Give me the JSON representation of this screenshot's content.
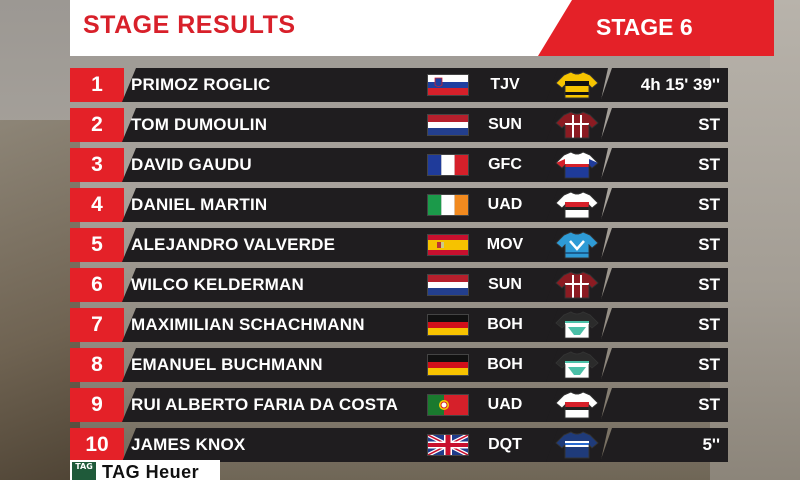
{
  "header": {
    "title": "STAGE RESULTS",
    "stage": "STAGE 6"
  },
  "colors": {
    "accent": "#e42128",
    "bar": "#1f1d1f"
  },
  "sponsor": {
    "badge": "TAG",
    "text": "TAG Heuer"
  },
  "rows": [
    {
      "pos": "1",
      "name": "PRIMOZ ROGLIC",
      "flag": "slovenia",
      "team": "TJV",
      "jersey": "yellow-black",
      "time": "4h 15' 39''"
    },
    {
      "pos": "2",
      "name": "TOM DUMOULIN",
      "flag": "netherlands",
      "team": "SUN",
      "jersey": "darkred-white",
      "time": "ST"
    },
    {
      "pos": "3",
      "name": "DAVID GAUDU",
      "flag": "france",
      "team": "GFC",
      "jersey": "blue-red-white",
      "time": "ST"
    },
    {
      "pos": "4",
      "name": "DANIEL MARTIN",
      "flag": "ireland",
      "team": "UAD",
      "jersey": "white-red-black",
      "time": "ST"
    },
    {
      "pos": "5",
      "name": "ALEJANDRO VALVERDE",
      "flag": "spain",
      "team": "MOV",
      "jersey": "lightblue",
      "time": "ST"
    },
    {
      "pos": "6",
      "name": "WILCO KELDERMAN",
      "flag": "netherlands",
      "team": "SUN",
      "jersey": "darkred-white",
      "time": "ST"
    },
    {
      "pos": "7",
      "name": "MAXIMILIAN SCHACHMANN",
      "flag": "germany",
      "team": "BOH",
      "jersey": "black-teal",
      "time": "ST"
    },
    {
      "pos": "8",
      "name": "EMANUEL BUCHMANN",
      "flag": "germany",
      "team": "BOH",
      "jersey": "black-teal",
      "time": "ST"
    },
    {
      "pos": "9",
      "name": "RUI ALBERTO FARIA DA COSTA",
      "flag": "portugal",
      "team": "UAD",
      "jersey": "white-red-black",
      "time": "ST"
    },
    {
      "pos": "10",
      "name": "JAMES KNOX",
      "flag": "uk",
      "team": "DQT",
      "jersey": "navy-white",
      "time": "5''"
    }
  ]
}
